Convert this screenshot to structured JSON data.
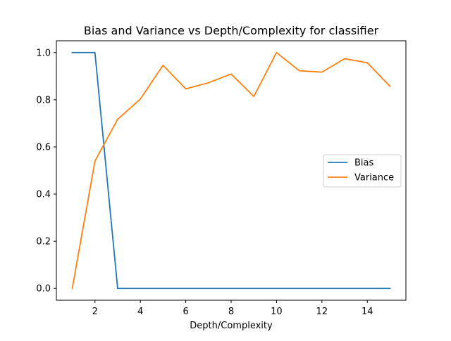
{
  "chart_data": {
    "type": "line",
    "title": "Bias and Variance vs Depth/Complexity for classifier",
    "xlabel": "Depth/Complexity",
    "ylabel": "",
    "x": [
      1,
      2,
      3,
      4,
      5,
      6,
      7,
      8,
      9,
      10,
      11,
      12,
      13,
      14,
      15
    ],
    "xlim": [
      0.3,
      15.7
    ],
    "ylim": [
      -0.05,
      1.05
    ],
    "xticks": [
      2,
      4,
      6,
      8,
      10,
      12,
      14
    ],
    "xtick_labels": [
      "2",
      "4",
      "6",
      "8",
      "10",
      "12",
      "14"
    ],
    "yticks": [
      0.0,
      0.2,
      0.4,
      0.6,
      0.8,
      1.0
    ],
    "ytick_labels": [
      "0.0",
      "0.2",
      "0.4",
      "0.6",
      "0.8",
      "1.0"
    ],
    "grid": false,
    "legend": {
      "placement": "center-right"
    },
    "series": [
      {
        "name": "Bias",
        "color": "#1f77b4",
        "values": [
          1.0,
          1.0,
          0.0,
          0.0,
          0.0,
          0.0,
          0.0,
          0.0,
          0.0,
          0.0,
          0.0,
          0.0,
          0.0,
          0.0,
          0.0
        ]
      },
      {
        "name": "Variance",
        "color": "#ff7f0e",
        "values": [
          0.0,
          0.54,
          0.717,
          0.803,
          0.946,
          0.846,
          0.872,
          0.909,
          0.814,
          1.0,
          0.923,
          0.917,
          0.974,
          0.957,
          0.857
        ]
      }
    ]
  }
}
